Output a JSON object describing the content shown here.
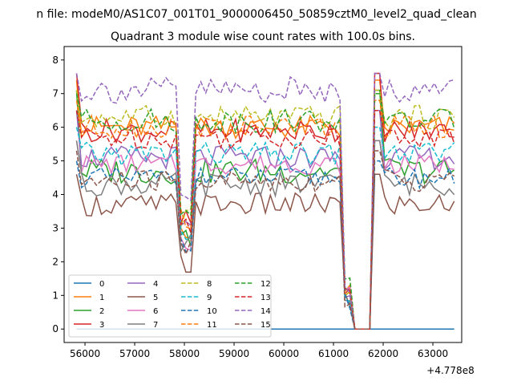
{
  "figure": {
    "suptitle": "n file: modeM0/AS1C07_001T01_9000006450_50859cztM0_level2_quad_clean",
    "offset_text": "+4.778e8"
  },
  "chart_data": {
    "type": "line",
    "title": "Quadrant 3 module wise count rates with 100.0s bins.",
    "xlabel": "",
    "ylabel": "",
    "x_offset": 477800000,
    "xlim": [
      55580,
      63580
    ],
    "ylim": [
      -0.4,
      8.4
    ],
    "xticks": [
      56000,
      57000,
      58000,
      59000,
      60000,
      61000,
      62000,
      63000
    ],
    "yticks": [
      0,
      1,
      2,
      3,
      4,
      5,
      6,
      7,
      8
    ],
    "grid": false,
    "legend": {
      "placement": "lower-left",
      "columns": 4
    },
    "x_start": 55830,
    "x_step": 100,
    "n_points": 77,
    "bins": [
      {
        "start": 55830,
        "end": 57930
      },
      {
        "start": 57930,
        "end": 58230
      },
      {
        "start": 58230,
        "end": 61230
      },
      {
        "start": 61230,
        "end": 61430
      },
      {
        "start": 61430,
        "end": 61830
      },
      {
        "start": 61830,
        "end": 62030
      },
      {
        "start": 62030,
        "end": 63330
      }
    ],
    "series": [
      {
        "name": "0",
        "color": "#1f77b4",
        "dash": "solid",
        "constant": 0
      },
      {
        "name": "1",
        "color": "#ff7f0e",
        "dash": "solid",
        "peak": 7.4,
        "mean": 6.0,
        "low": 3.0,
        "amp": 0.35
      },
      {
        "name": "2",
        "color": "#2ca02c",
        "dash": "solid",
        "peak": 7.1,
        "mean": 4.7,
        "low": 2.7,
        "amp": 0.4
      },
      {
        "name": "3",
        "color": "#d62728",
        "dash": "solid",
        "peak": 7.6,
        "mean": 5.9,
        "low": 3.2,
        "amp": 0.35
      },
      {
        "name": "4",
        "color": "#9467bd",
        "dash": "solid",
        "peak": 6.5,
        "mean": 5.1,
        "low": 3.0,
        "amp": 0.35
      },
      {
        "name": "5",
        "color": "#8c564b",
        "dash": "solid",
        "peak": 4.6,
        "mean": 3.7,
        "low": 1.9,
        "amp": 0.35
      },
      {
        "name": "6",
        "color": "#e377c2",
        "dash": "solid",
        "peak": 5.6,
        "mean": 4.9,
        "low": 2.6,
        "amp": 0.3
      },
      {
        "name": "7",
        "color": "#7f7f7f",
        "dash": "solid",
        "peak": 5.6,
        "mean": 4.3,
        "low": 2.5,
        "amp": 0.35
      },
      {
        "name": "8",
        "color": "#bcbd22",
        "dash": "dashed",
        "peak": 7.1,
        "mean": 6.3,
        "low": 3.4,
        "amp": 0.35
      },
      {
        "name": "9",
        "color": "#17becf",
        "dash": "dashed",
        "peak": 6.0,
        "mean": 5.2,
        "low": 2.8,
        "amp": 0.35
      },
      {
        "name": "10",
        "color": "#1f77b4",
        "dash": "dashed",
        "peak": 5.0,
        "mean": 4.5,
        "low": 2.6,
        "amp": 0.3
      },
      {
        "name": "11",
        "color": "#ff7f0e",
        "dash": "dashed",
        "peak": 6.8,
        "mean": 6.0,
        "low": 3.3,
        "amp": 0.35
      },
      {
        "name": "12",
        "color": "#2ca02c",
        "dash": "dashed",
        "peak": 7.0,
        "mean": 6.2,
        "low": 3.3,
        "amp": 0.35
      },
      {
        "name": "13",
        "color": "#d62728",
        "dash": "dashed",
        "peak": 6.5,
        "mean": 5.7,
        "low": 3.1,
        "amp": 0.35
      },
      {
        "name": "14",
        "color": "#9467bd",
        "dash": "dashed",
        "peak": 7.6,
        "mean": 7.1,
        "low": 3.9,
        "amp": 0.4
      },
      {
        "name": "15",
        "color": "#8c564b",
        "dash": "dashed",
        "peak": 5.3,
        "mean": 4.4,
        "low": 2.4,
        "amp": 0.35
      }
    ]
  }
}
